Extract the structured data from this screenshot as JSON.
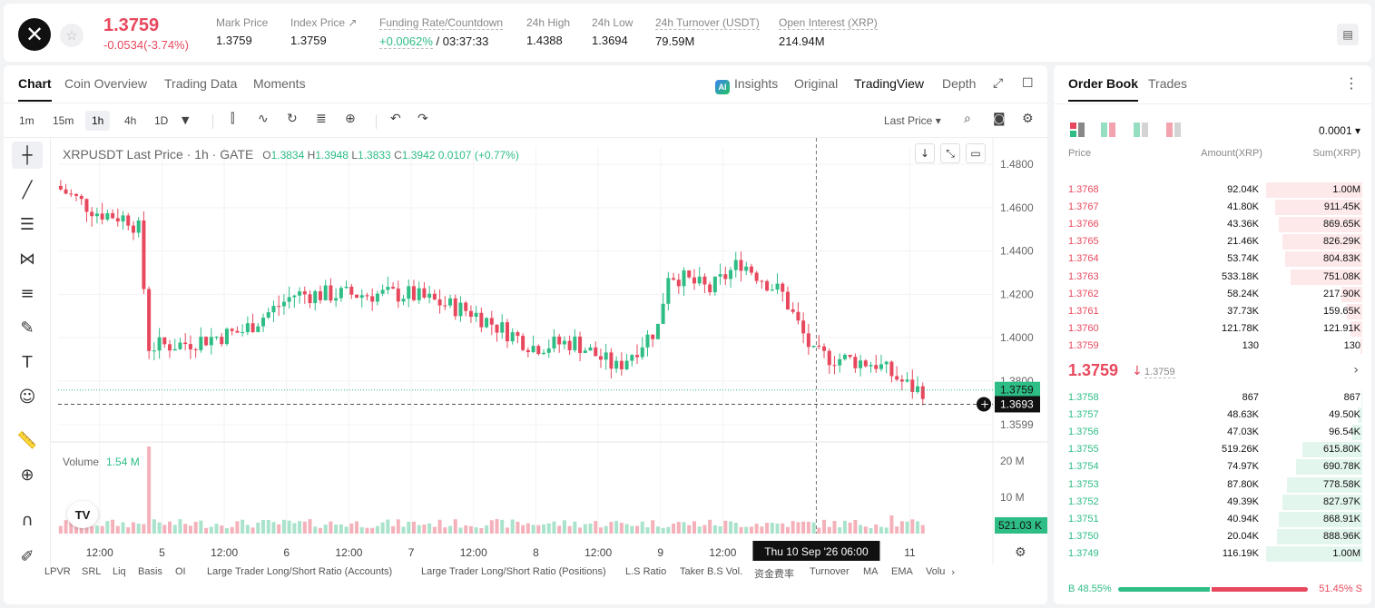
{
  "header": {
    "logo_glyph": "✕",
    "last_price": "1.3759",
    "change": "-0.0534(-3.74%)",
    "stats": [
      {
        "label": "Mark Price",
        "value": "1.3759"
      },
      {
        "label": "Index Price ↗",
        "value": "1.3759"
      },
      {
        "label": "Funding Rate/Countdown",
        "value_green": "+0.0062%",
        "value": " / 03:37:33"
      },
      {
        "label": "24h High",
        "value": "1.4388"
      },
      {
        "label": "24h Low",
        "value": "1.3694"
      },
      {
        "label": "24h Turnover (USDT)",
        "value": "79.59M"
      },
      {
        "label": "Open Interest (XRP)",
        "value": "214.94M"
      }
    ]
  },
  "chart_panel": {
    "tabs": [
      "Chart",
      "Coin Overview",
      "Trading Data",
      "Moments"
    ],
    "views": {
      "insights": "Insights",
      "original": "Original",
      "tradingview": "TradingView",
      "depth": "Depth"
    },
    "timeframes": [
      "1m",
      "15m",
      "1h",
      "4h",
      "1D"
    ],
    "price_type": "Last Price ▾",
    "legend": {
      "title": "XRPUSDT Last Price · 1h · GATE",
      "o": "O",
      "o_val": "1.3834",
      "h": "H",
      "h_val": "1.3948",
      "l": "L",
      "l_val": "1.3833",
      "c": "C",
      "c_val": "1.3942",
      "chg": "0.0107 (+0.77%)"
    },
    "volume_legend": {
      "label": "Volume",
      "value": "1.54 M"
    },
    "indicators": [
      "LPVR",
      "SRL",
      "Liq",
      "Basis",
      "OI",
      "Large Trader Long/Short Ratio (Accounts)",
      "Large Trader Long/Short Ratio (Positions)",
      "L.S Ratio",
      "Taker B.S Vol.",
      "资金费率",
      "Turnover",
      "MA",
      "EMA",
      "Volu"
    ]
  },
  "chart_data": {
    "type": "candlestick",
    "symbol": "XRPUSDT",
    "interval": "1h",
    "price_axis": [
      "1.4800",
      "1.4600",
      "1.4400",
      "1.4200",
      "1.4000",
      "1.3800",
      "1.3599"
    ],
    "price_axis_values": [
      1.48,
      1.46,
      1.44,
      1.42,
      1.4,
      1.38,
      1.3599
    ],
    "ylim": [
      1.354,
      1.488
    ],
    "volume_axis": [
      "20 M",
      "10 M"
    ],
    "volume_axis_values": [
      20000000,
      10000000
    ],
    "vol_max": 24000000,
    "time_axis": [
      "12:00",
      "5",
      "12:00",
      "6",
      "12:00",
      "7",
      "12:00",
      "8",
      "12:00",
      "9",
      "12:00",
      "11"
    ],
    "time_axis_hours": [
      8,
      20,
      32,
      44,
      56,
      68,
      80,
      92,
      104,
      116,
      128,
      164
    ],
    "hours_span": 180,
    "current_price_label": "1.3759",
    "current_price": 1.3759,
    "crosshair_price_label": "1.3693",
    "crosshair_price": 1.3693,
    "crosshair_time_label": "Thu 10 Sep '26   06:00",
    "crosshair_hour": 146,
    "volume_label": "521.03 K",
    "up_color": "#2ebd85",
    "down_color": "#e8485d"
  },
  "orderbook": {
    "tabs": [
      "Order Book",
      "Trades"
    ],
    "precision": "0.0001 ▾",
    "headers": {
      "price": "Price",
      "amount": "Amount(XRP)",
      "sum": "Sum(XRP)"
    },
    "asks": [
      {
        "price": "1.3768",
        "amount": "92.04K",
        "sum": "1.00M"
      },
      {
        "price": "1.3767",
        "amount": "41.80K",
        "sum": "911.45K"
      },
      {
        "price": "1.3766",
        "amount": "43.36K",
        "sum": "869.65K"
      },
      {
        "price": "1.3765",
        "amount": "21.46K",
        "sum": "826.29K"
      },
      {
        "price": "1.3764",
        "amount": "53.74K",
        "sum": "804.83K"
      },
      {
        "price": "1.3763",
        "amount": "533.18K",
        "sum": "751.08K"
      },
      {
        "price": "1.3762",
        "amount": "58.24K",
        "sum": "217.90K"
      },
      {
        "price": "1.3761",
        "amount": "37.73K",
        "sum": "159.65K"
      },
      {
        "price": "1.3760",
        "amount": "121.78K",
        "sum": "121.91K"
      },
      {
        "price": "1.3759",
        "amount": "130",
        "sum": "130"
      }
    ],
    "ask_depth": [
      1.0,
      0.91,
      0.87,
      0.83,
      0.8,
      0.75,
      0.22,
      0.16,
      0.12,
      0.02
    ],
    "mid": {
      "price": "1.3759",
      "arrow": "↓",
      "mark": "1.3759"
    },
    "bids": [
      {
        "price": "1.3758",
        "amount": "867",
        "sum": "867"
      },
      {
        "price": "1.3757",
        "amount": "48.63K",
        "sum": "49.50K"
      },
      {
        "price": "1.3756",
        "amount": "47.03K",
        "sum": "96.54K"
      },
      {
        "price": "1.3755",
        "amount": "519.26K",
        "sum": "615.80K"
      },
      {
        "price": "1.3754",
        "amount": "74.97K",
        "sum": "690.78K"
      },
      {
        "price": "1.3753",
        "amount": "87.80K",
        "sum": "778.58K"
      },
      {
        "price": "1.3752",
        "amount": "49.39K",
        "sum": "827.97K"
      },
      {
        "price": "1.3751",
        "amount": "40.94K",
        "sum": "868.91K"
      },
      {
        "price": "1.3750",
        "amount": "20.04K",
        "sum": "888.96K"
      },
      {
        "price": "1.3749",
        "amount": "116.19K",
        "sum": "1.00M"
      }
    ],
    "bid_depth": [
      0.01,
      0.05,
      0.1,
      0.62,
      0.69,
      0.78,
      0.83,
      0.87,
      0.89,
      1.0
    ],
    "ratio": {
      "buy": "B 48.55%",
      "sell": "51.45% S",
      "buy_fraction": 0.4855
    }
  }
}
